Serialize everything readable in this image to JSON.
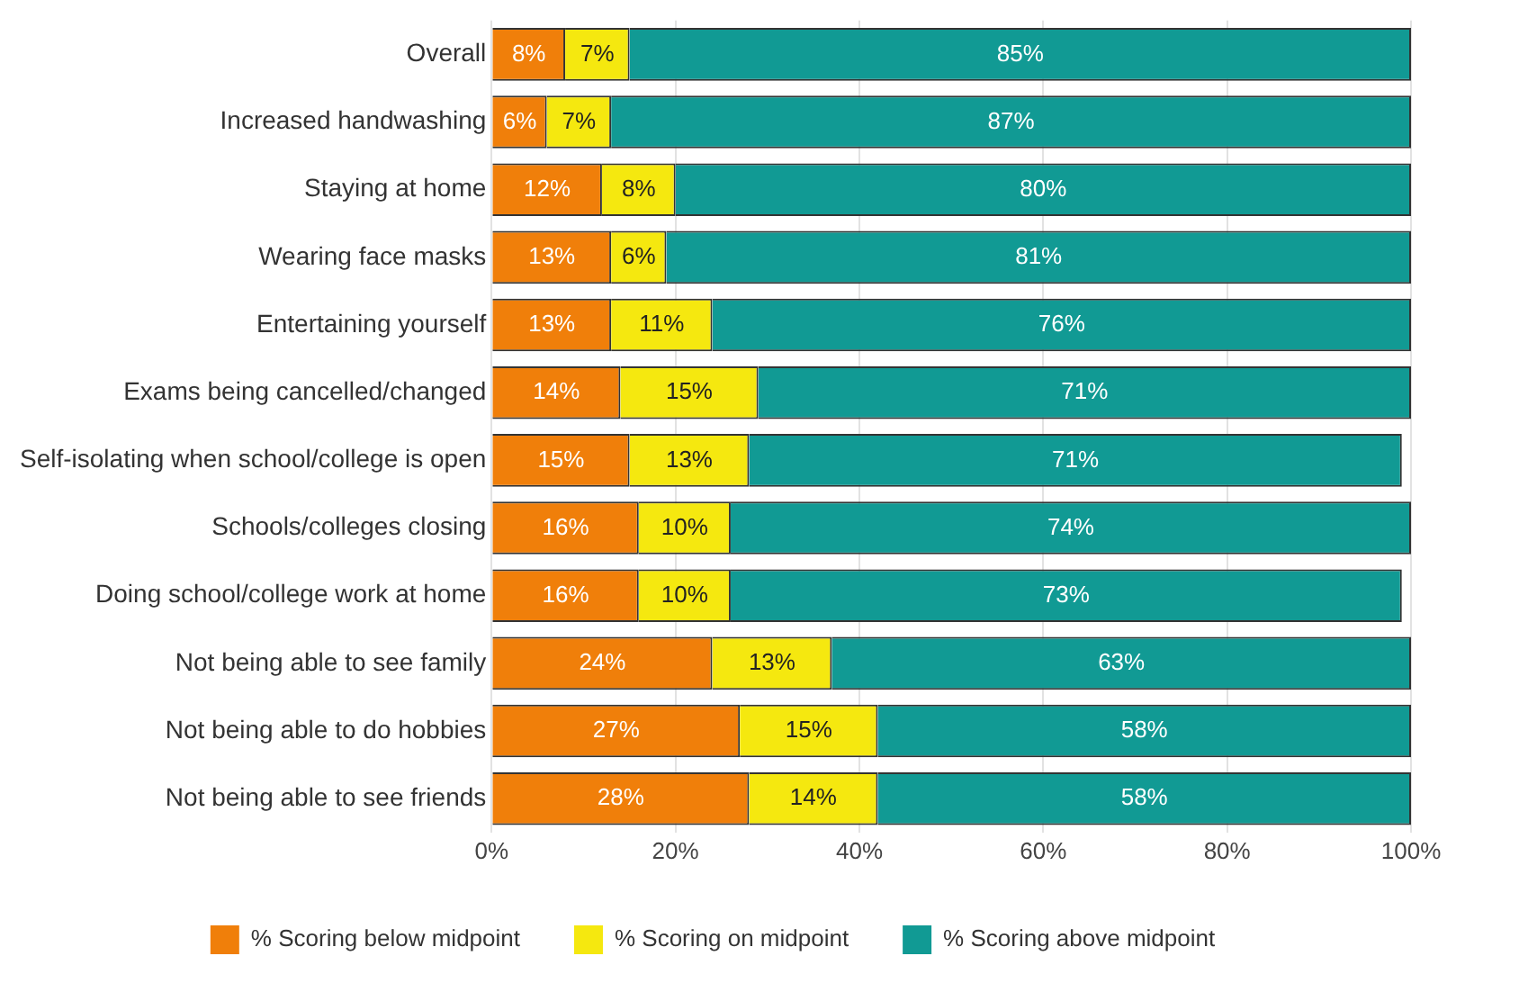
{
  "chart_data": {
    "type": "bar",
    "orientation": "horizontal",
    "stacked": true,
    "categories": [
      "Overall",
      "Increased handwashing",
      "Staying at home",
      "Wearing face masks",
      "Entertaining yourself",
      "Exams being cancelled/changed",
      "Self-isolating when school/college is open",
      "Schools/colleges closing",
      "Doing school/college work at home",
      "Not being able to see family",
      "Not being able to do hobbies",
      "Not being able to see friends"
    ],
    "series": [
      {
        "name": "% Scoring below midpoint",
        "color": "#f07f0a",
        "values": [
          8,
          6,
          12,
          13,
          13,
          14,
          15,
          16,
          16,
          24,
          27,
          28
        ],
        "value_labels": [
          "8%",
          "6%",
          "12%",
          "13%",
          "13%",
          "14%",
          "15%",
          "16%",
          "16%",
          "24%",
          "27%",
          "28%"
        ]
      },
      {
        "name": "% Scoring on midpoint",
        "color": "#f5e80f",
        "values": [
          7,
          7,
          8,
          6,
          11,
          15,
          13,
          10,
          10,
          13,
          15,
          14
        ],
        "value_labels": [
          "7%",
          "7%",
          "8%",
          "6%",
          "11%",
          "15%",
          "13%",
          "10%",
          "10%",
          "13%",
          "15%",
          "14%"
        ]
      },
      {
        "name": "% Scoring above midpoint",
        "color": "#119a94",
        "values": [
          85,
          87,
          80,
          81,
          76,
          71,
          71,
          74,
          73,
          63,
          58,
          58
        ],
        "value_labels": [
          "85%",
          "87%",
          "80%",
          "81%",
          "76%",
          "71%",
          "71%",
          "74%",
          "73%",
          "63%",
          "58%",
          "58%"
        ]
      }
    ],
    "xlim": [
      0,
      100
    ],
    "xticks": [
      {
        "value": 0,
        "label": "0%"
      },
      {
        "value": 20,
        "label": "20%"
      },
      {
        "value": 40,
        "label": "40%"
      },
      {
        "value": 60,
        "label": "60%"
      },
      {
        "value": 80,
        "label": "80%"
      },
      {
        "value": 100,
        "label": "100%"
      }
    ],
    "grid": "x",
    "legend": "bottom"
  }
}
